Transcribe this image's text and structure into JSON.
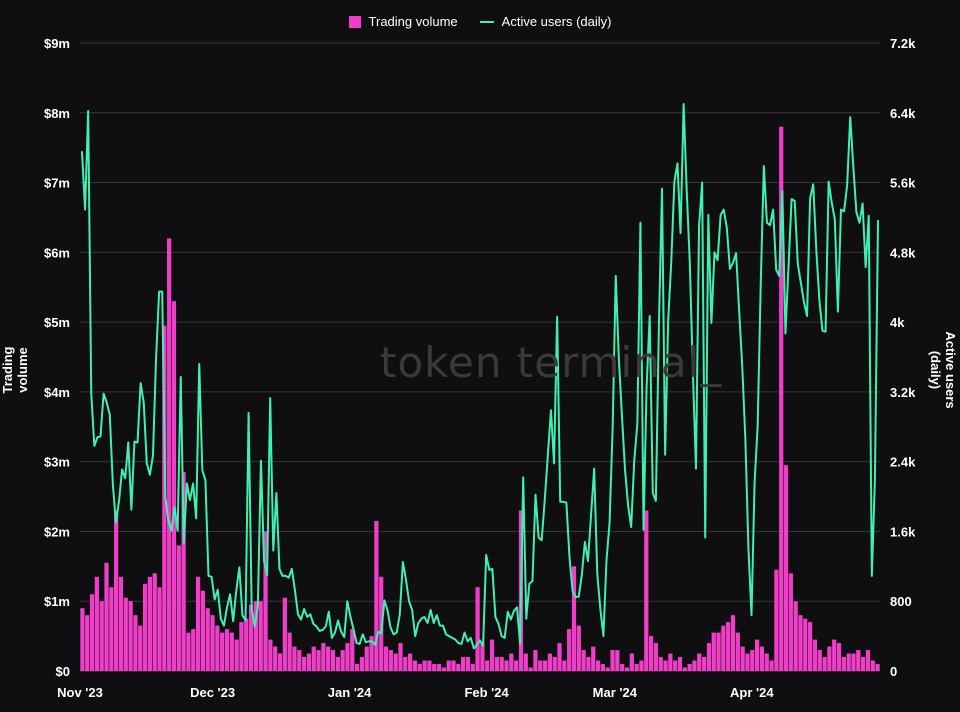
{
  "chart_data": {
    "type": "bar",
    "combo": "bar+line",
    "legend": {
      "placement": "top-center",
      "items": [
        {
          "label": "Trading volume",
          "kind": "bar",
          "color": "#f03ec8"
        },
        {
          "label": "Active users (daily)",
          "kind": "line",
          "color": "#3ff0b0"
        }
      ]
    },
    "ylabel_left": "Trading volume",
    "ylabel_right": "Active users (daily)",
    "y_left_ticks": [
      "$0",
      "$1m",
      "$2m",
      "$3m",
      "$4m",
      "$5m",
      "$6m",
      "$7m",
      "$8m",
      "$9m"
    ],
    "y_right_ticks": [
      "0",
      "800",
      "1.6k",
      "2.4k",
      "3.2k",
      "4k",
      "4.8k",
      "5.6k",
      "6.4k",
      "7.2k"
    ],
    "ylim_left": [
      0,
      9000000
    ],
    "ylim_right": [
      0,
      7200
    ],
    "x_range": [
      "2023-11-01",
      "2024-04-30"
    ],
    "x_ticks": [
      {
        "date": "2023-11-01",
        "label": "Nov '23"
      },
      {
        "date": "2023-12-01",
        "label": "Dec '23"
      },
      {
        "date": "2024-01-01",
        "label": "Jan '24"
      },
      {
        "date": "2024-02-01",
        "label": "Feb '24"
      },
      {
        "date": "2024-03-01",
        "label": "Mar '24"
      },
      {
        "date": "2024-04-01",
        "label": "Apr '24"
      }
    ],
    "grid": true,
    "watermark": "token terminal_",
    "series": [
      {
        "name": "Trading volume",
        "type": "bar",
        "color": "#f03ec8",
        "values": [
          900000,
          800000,
          1100000,
          1350000,
          1000000,
          1550000,
          1200000,
          2300000,
          1350000,
          1050000,
          1000000,
          800000,
          650000,
          1250000,
          1350000,
          1400000,
          1200000,
          4950000,
          6200000,
          5300000,
          1800000,
          2850000,
          550000,
          600000,
          1350000,
          1150000,
          900000,
          800000,
          650000,
          550000,
          600000,
          550000,
          450000,
          700000,
          750000,
          950000,
          1000000,
          1000000,
          2000000,
          450000,
          350000,
          250000,
          1050000,
          550000,
          350000,
          300000,
          200000,
          250000,
          350000,
          300000,
          400000,
          350000,
          300000,
          200000,
          300000,
          400000,
          600000,
          100000,
          200000,
          350000,
          500000,
          2150000,
          1350000,
          350000,
          300000,
          250000,
          400000,
          200000,
          250000,
          150000,
          100000,
          150000,
          150000,
          100000,
          100000,
          50000,
          150000,
          150000,
          100000,
          200000,
          200000,
          100000,
          1200000,
          400000,
          150000,
          450000,
          200000,
          200000,
          150000,
          250000,
          150000,
          2300000,
          250000,
          50000,
          300000,
          150000,
          150000,
          250000,
          200000,
          400000,
          150000,
          600000,
          1500000,
          650000,
          300000,
          200000,
          350000,
          150000,
          100000,
          50000,
          300000,
          300000,
          100000,
          50000,
          250000,
          100000,
          150000,
          2300000,
          500000,
          400000,
          200000,
          150000,
          250000,
          150000,
          200000,
          50000,
          100000,
          150000,
          250000,
          200000,
          400000,
          550000,
          550000,
          650000,
          700000,
          800000,
          550000,
          350000,
          250000,
          300000,
          450000,
          350000,
          250000,
          150000,
          1450000,
          7800000,
          2950000,
          1400000,
          1000000,
          800000,
          750000,
          700000,
          450000,
          300000,
          200000,
          350000,
          450000,
          400000,
          200000,
          250000,
          250000,
          300000,
          200000,
          300000,
          150000,
          100000
        ]
      },
      {
        "name": "Active users (daily)",
        "type": "line",
        "color": "#3ff0b0",
        "values": [
          5950,
          5290,
          6420,
          3180,
          2580,
          2680,
          2690,
          3180,
          3080,
          2940,
          2140,
          1700,
          1950,
          2310,
          2210,
          2620,
          1850,
          2630,
          2620,
          3300,
          3080,
          2380,
          2250,
          2470,
          3580,
          4350,
          4350,
          2000,
          1720,
          1610,
          1880,
          1610,
          3370,
          1470,
          2150,
          1960,
          2150,
          1750,
          3520,
          2300,
          2190,
          1090,
          1080,
          820,
          930,
          600,
          520,
          730,
          880,
          570,
          920,
          1190,
          640,
          580,
          2960,
          710,
          510,
          750,
          2410,
          1260,
          1100,
          3130,
          1380,
          2040,
          1170,
          1090,
          1090,
          1070,
          1170,
          930,
          650,
          590,
          710,
          620,
          650,
          540,
          510,
          460,
          470,
          510,
          680,
          380,
          440,
          580,
          450,
          390,
          800,
          620,
          480,
          320,
          310,
          420,
          330,
          340,
          340,
          300,
          450,
          430,
          810,
          700,
          500,
          420,
          440,
          650,
          1250,
          1050,
          800,
          700,
          400,
          550,
          600,
          620,
          550,
          700,
          550,
          640,
          520,
          520,
          420,
          400,
          380,
          360,
          320,
          310,
          440,
          340,
          380,
          260,
          300,
          350,
          290,
          1330,
          1160,
          1170,
          620,
          540,
          400,
          380,
          680,
          590,
          690,
          730,
          310,
          2220,
          600,
          1000,
          1030,
          2020,
          1530,
          1500,
          1970,
          2480,
          2990,
          2380,
          4060,
          1940,
          1940,
          1930,
          1310,
          920,
          850,
          850,
          1100,
          1480,
          1260,
          1790,
          2320,
          1120,
          710,
          400,
          1270,
          1700,
          2800,
          4530,
          3580,
          2930,
          2310,
          1900,
          1650,
          2410,
          2840,
          5140,
          1620,
          3260,
          4070,
          2040,
          1950,
          3990,
          5530,
          2480,
          4020,
          4700,
          5610,
          5820,
          5020,
          6500,
          5510,
          4680,
          3420,
          2320,
          5100,
          5600,
          1530,
          5230,
          3990,
          4800,
          4710,
          5230,
          5290,
          5080,
          4610,
          4680,
          4790,
          4130,
          3490,
          2670,
          1410,
          640,
          2160,
          2810,
          4450,
          5790,
          5140,
          5110,
          5290,
          4600,
          4530,
          5500,
          3870,
          4640,
          5410,
          5390,
          4670,
          4450,
          4230,
          4070,
          5420,
          5580,
          4830,
          4250,
          3900,
          3890,
          5610,
          5370,
          5180,
          4120,
          5290,
          5270,
          5570,
          6350,
          5780,
          5260,
          5140,
          5360,
          4630,
          5220,
          1090,
          2190,
          5160
        ]
      }
    ]
  }
}
